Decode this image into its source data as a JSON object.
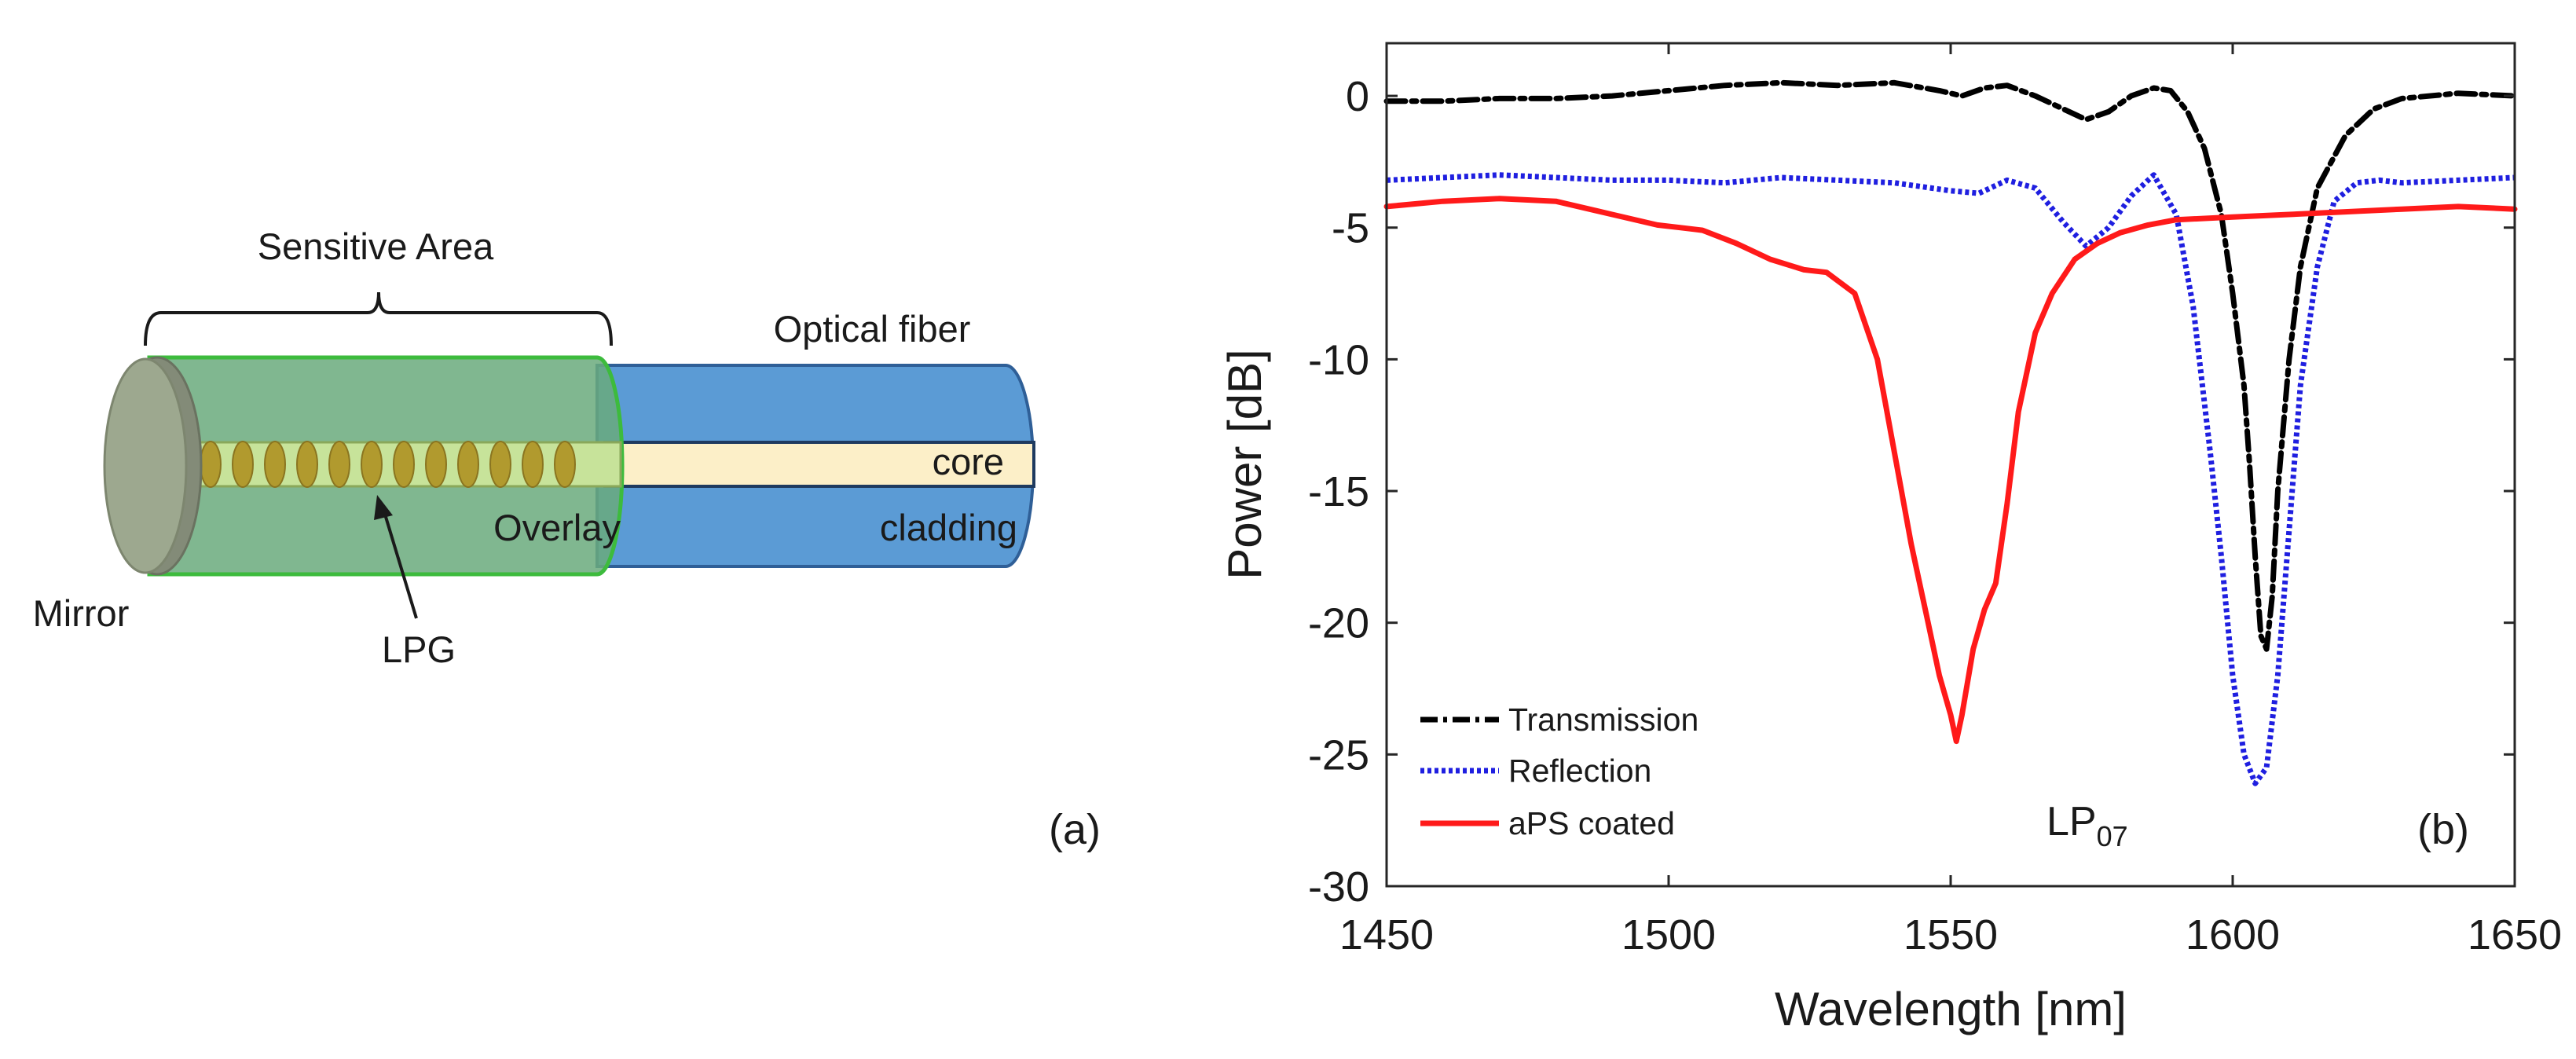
{
  "panel_a": {
    "sensitive_area": "Sensitive Area",
    "optical_fiber": "Optical fiber",
    "core": "core",
    "cladding": "cladding",
    "overlay": "Overlay",
    "mirror": "Mirror",
    "lpg": "LPG",
    "panel_label": "(a)",
    "colors": {
      "overlay_fill": "#6aaa7c",
      "overlay_stroke": "#3dbb3d",
      "fiber_fill": "#5b9bd5",
      "fiber_stroke": "#2f5f97",
      "core_fill": "#fcefc8",
      "grating": "#b19a2e",
      "mirror": "#9da88f"
    }
  },
  "panel_b": {
    "panel_label": "(b)",
    "annotation": {
      "main": "LP",
      "sub": "07"
    }
  },
  "chart_data": {
    "type": "line",
    "title": "",
    "xlabel": "Wavelength [nm]",
    "ylabel": "Power [dB]",
    "xlim": [
      1450,
      1650
    ],
    "ylim": [
      -30,
      2
    ],
    "xticks": [
      1450,
      1500,
      1550,
      1600,
      1650
    ],
    "yticks": [
      0,
      -5,
      -10,
      -15,
      -20,
      -25,
      -30
    ],
    "grid": false,
    "legend_position": "bottom-left",
    "series": [
      {
        "name": "Transmission",
        "color": "#000000",
        "style": "dashdot",
        "x": [
          1450,
          1460,
          1470,
          1480,
          1490,
          1500,
          1510,
          1520,
          1530,
          1540,
          1548,
          1552,
          1556,
          1560,
          1565,
          1570,
          1574,
          1578,
          1582,
          1586,
          1589,
          1592,
          1595,
          1598,
          1600,
          1602,
          1603,
          1604,
          1605,
          1606,
          1607,
          1608,
          1610,
          1612,
          1615,
          1620,
          1625,
          1630,
          1640,
          1650
        ],
        "y": [
          -0.2,
          -0.2,
          -0.1,
          -0.1,
          0.0,
          0.2,
          0.4,
          0.5,
          0.4,
          0.5,
          0.2,
          0.0,
          0.3,
          0.4,
          0.0,
          -0.5,
          -0.9,
          -0.6,
          0.0,
          0.3,
          0.2,
          -0.6,
          -2.0,
          -4.5,
          -7.5,
          -11.0,
          -14.0,
          -17.5,
          -20.5,
          -21.0,
          -19.0,
          -15.0,
          -10.0,
          -6.5,
          -3.5,
          -1.5,
          -0.5,
          -0.1,
          0.1,
          0.0
        ]
      },
      {
        "name": "Reflection",
        "color": "#1f1fe0",
        "style": "dotted",
        "x": [
          1450,
          1460,
          1470,
          1480,
          1490,
          1500,
          1510,
          1520,
          1530,
          1540,
          1550,
          1555,
          1560,
          1565,
          1570,
          1574,
          1578,
          1582,
          1586,
          1590,
          1593,
          1596,
          1598,
          1600,
          1602,
          1604,
          1606,
          1608,
          1610,
          1612,
          1615,
          1618,
          1622,
          1626,
          1630,
          1640,
          1650
        ],
        "y": [
          -3.2,
          -3.1,
          -3.0,
          -3.1,
          -3.2,
          -3.2,
          -3.3,
          -3.1,
          -3.2,
          -3.3,
          -3.6,
          -3.7,
          -3.2,
          -3.5,
          -4.8,
          -5.7,
          -5.0,
          -3.8,
          -3.0,
          -4.5,
          -8.0,
          -13.5,
          -17.5,
          -22.0,
          -25.0,
          -26.1,
          -25.5,
          -22.0,
          -16.5,
          -11.0,
          -6.5,
          -4.0,
          -3.3,
          -3.2,
          -3.3,
          -3.2,
          -3.1
        ]
      },
      {
        "name": "aPS coated",
        "color": "#ff1a1a",
        "style": "solid",
        "x": [
          1450,
          1460,
          1470,
          1480,
          1490,
          1498,
          1502,
          1506,
          1512,
          1518,
          1524,
          1528,
          1533,
          1537,
          1540,
          1543,
          1546,
          1548,
          1550,
          1551,
          1552,
          1554,
          1556,
          1558,
          1560,
          1562,
          1565,
          1568,
          1572,
          1576,
          1580,
          1585,
          1590,
          1600,
          1610,
          1620,
          1630,
          1640,
          1650
        ],
        "y": [
          -4.2,
          -4.0,
          -3.9,
          -4.0,
          -4.5,
          -4.9,
          -5.0,
          -5.1,
          -5.6,
          -6.2,
          -6.6,
          -6.7,
          -7.5,
          -10.0,
          -13.5,
          -17.0,
          -20.0,
          -22.0,
          -23.5,
          -24.5,
          -23.5,
          -21.0,
          -19.5,
          -18.5,
          -15.5,
          -12.0,
          -9.0,
          -7.5,
          -6.2,
          -5.6,
          -5.2,
          -4.9,
          -4.7,
          -4.6,
          -4.5,
          -4.4,
          -4.3,
          -4.2,
          -4.3
        ]
      }
    ]
  }
}
